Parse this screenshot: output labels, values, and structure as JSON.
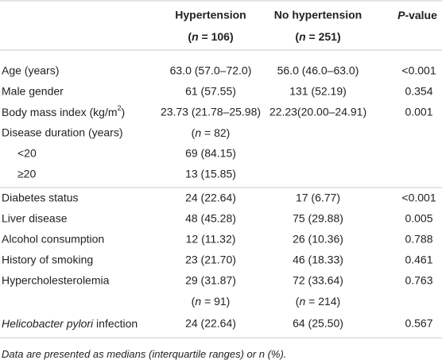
{
  "table": {
    "columns": [
      {
        "name": "Hypertension",
        "n": [
          "(",
          "n",
          " = 106)"
        ]
      },
      {
        "name": "No hypertension",
        "n": [
          "(",
          "n",
          " = 251)"
        ]
      },
      {
        "name": [
          "P",
          "-value"
        ]
      }
    ],
    "rows": [
      {
        "label": "Age (years)",
        "hypertension": "63.0 (57.0–72.0)",
        "no_hypertension": "56.0 (46.0–63.0)",
        "p": "<0.001"
      },
      {
        "label": "Male gender",
        "hypertension": "61 (57.55)",
        "no_hypertension": "131 (52.19)",
        "p": "0.354"
      },
      {
        "label": [
          "Body mass index (kg/m",
          "2",
          ")"
        ],
        "hypertension": "23.73 (21.78–25.98)",
        "no_hypertension": "22.23(20.00–24.91)",
        "p": "0.001"
      },
      {
        "label": "Disease duration (years)",
        "hypertension": [
          "(",
          "n",
          " = 82)"
        ]
      },
      {
        "label": "<20",
        "hypertension": "69 (84.15)"
      },
      {
        "label": "≥20",
        "hypertension": "13 (15.85)"
      },
      {
        "label": "Diabetes status",
        "hypertension": "24 (22.64)",
        "no_hypertension": "17 (6.77)",
        "p": "<0.001"
      },
      {
        "label": "Liver disease",
        "hypertension": "48 (45.28)",
        "no_hypertension": "75 (29.88)",
        "p": "0.005"
      },
      {
        "label": "Alcohol consumption",
        "hypertension": "12 (11.32)",
        "no_hypertension": "26 (10.36)",
        "p": "0.788"
      },
      {
        "label": "History of smoking",
        "hypertension": "23 (21.70)",
        "no_hypertension": "46 (18.33)",
        "p": "0.461"
      },
      {
        "label": "Hypercholesterolemia",
        "hypertension": "29 (31.87)",
        "no_hypertension": "72 (33.64)",
        "p": "0.763"
      },
      {
        "hypertension": [
          "(",
          "n",
          " = 91)"
        ],
        "no_hypertension": [
          "(",
          "n",
          " = 214)"
        ]
      },
      {
        "label": [
          "Helicobacter pylori",
          " infection"
        ],
        "hypertension": "24 (22.64)",
        "no_hypertension": "64 (25.50)",
        "p": "0.567"
      }
    ],
    "footnote": [
      "Data are presented as medians (interquartile ranges) or ",
      "n",
      " (%)."
    ]
  }
}
